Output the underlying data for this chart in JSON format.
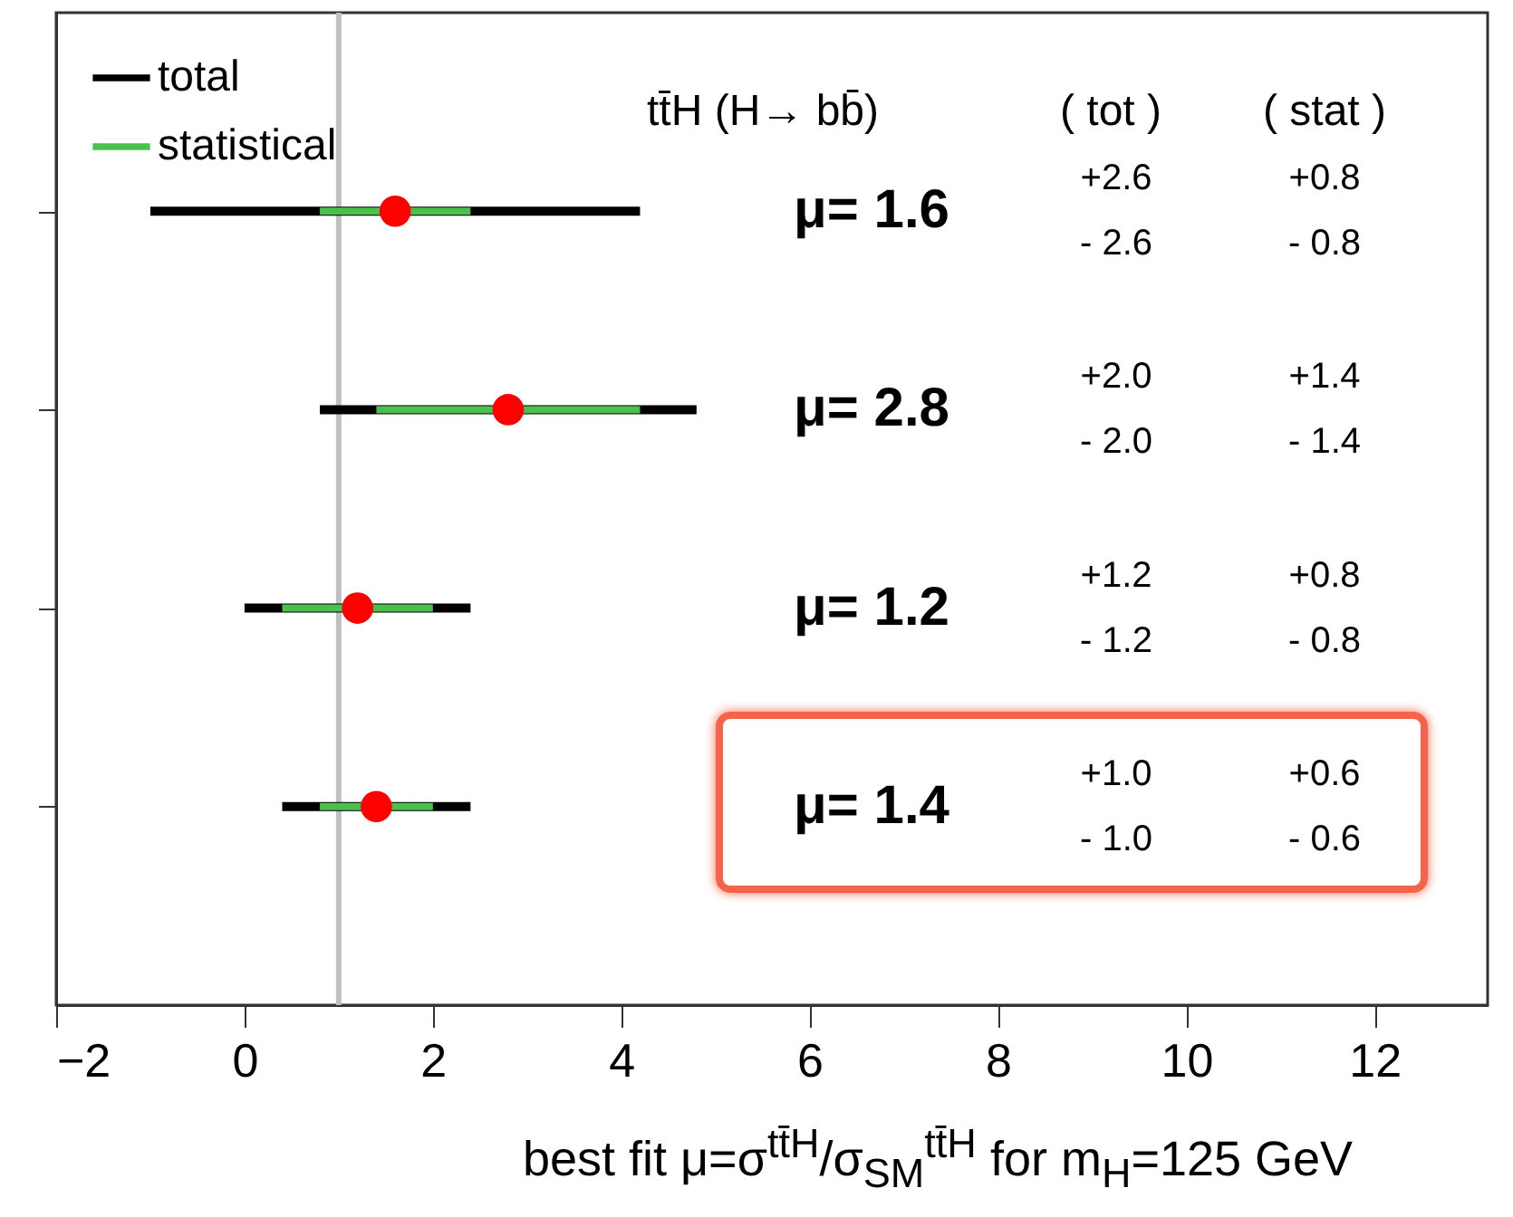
{
  "chart_data": {
    "type": "scatter",
    "orientation": "horizontal",
    "categories": [
      null,
      null,
      null,
      null
    ],
    "xlabel": "best fit μ=σ$^{tt̄H}$/σ$_{SM}$$^{tt̄H}$ for m$_{H}$=125 GeV",
    "xlim": [
      -2,
      13.2
    ],
    "xticks": [
      -2,
      0,
      2,
      4,
      6,
      8,
      10,
      12
    ],
    "tick_labels": "x",
    "legend": "top left",
    "grid": false,
    "ref_lines": [
      {
        "axis": "x",
        "value": 1,
        "color": "#c0c0c0"
      }
    ],
    "annotations": [
      "tt̄H (H→ bb̄)",
      "( tot )",
      "( stat )",
      "μ= 1.6",
      "+2.6",
      "- 2.6",
      "+0.8",
      "- 0.8",
      "μ= 2.8",
      "+2.0",
      "- 2.0",
      "+1.4",
      "- 1.4",
      "μ= 1.2",
      "+1.2",
      "- 1.2",
      "+0.8",
      "- 0.8",
      "μ= 1.4",
      "+1.0",
      "- 1.0",
      "+0.6",
      "- 0.6"
    ],
    "series": [
      {
        "name": "total",
        "type": "bar",
        "color": "#000000",
        "base": [
          -1.0,
          0.8,
          0.0,
          0.4
        ],
        "values": [
          5.2,
          4.0,
          2.4,
          2.0
        ]
      },
      {
        "name": "statistical",
        "type": "bar",
        "color": "#4cc04c",
        "base": [
          0.8,
          1.4,
          0.4,
          0.8
        ],
        "values": [
          1.6,
          2.8,
          1.6,
          1.2
        ]
      },
      {
        "color": "#ff0000",
        "values": [
          1.6,
          2.8,
          1.2,
          1.4
        ],
        "marker": "circle"
      }
    ]
  }
}
